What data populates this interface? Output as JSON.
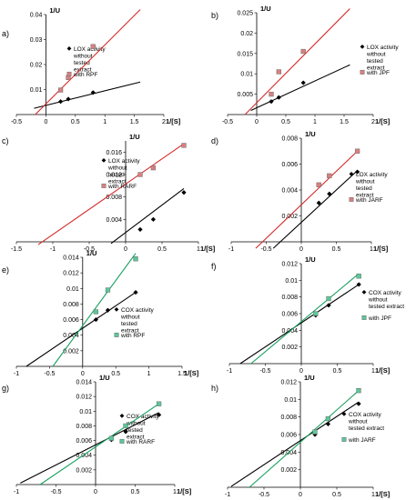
{
  "chart_data": [
    {
      "panel_label": "a)",
      "type": "line",
      "ylabel": "1/U",
      "xlabel": "1/[S]",
      "xlim": [
        -0.5,
        2
      ],
      "ylim": [
        0,
        0.04
      ],
      "xticks": [
        "-0.5",
        "0",
        "0.5",
        "1",
        "1.5",
        "2"
      ],
      "yticks": [
        "0.01",
        "0.02",
        "0.03",
        "0.04"
      ],
      "series": [
        {
          "name": "LOX activity without tested extract",
          "color": "#000000",
          "marker": "diamond",
          "x": [
            0.25,
            0.38,
            0.8
          ],
          "y": [
            0.0052,
            0.0062,
            0.0088
          ],
          "line": [
            [
              -0.2,
              0.0025
            ],
            [
              1.6,
              0.013
            ]
          ]
        },
        {
          "name": "with RPF",
          "color": "#d42a2a",
          "marker": "square",
          "x": [
            0.25,
            0.38,
            0.8
          ],
          "y": [
            0.0098,
            0.0148,
            0.0272
          ],
          "line": [
            [
              -0.18,
              0
            ],
            [
              1.6,
              0.042
            ]
          ]
        }
      ]
    },
    {
      "panel_label": "b)",
      "type": "line",
      "ylabel": "1/U",
      "xlabel": "1/[S]",
      "xlim": [
        -0.5,
        2
      ],
      "ylim": [
        0,
        0.025
      ],
      "xticks": [
        "-0.5",
        "0",
        "0.5",
        "1",
        "1.5",
        "2"
      ],
      "yticks": [
        "0.005",
        "0.01",
        "0.015",
        "0.02",
        "0.025"
      ],
      "series": [
        {
          "name": "LOX activity without tested extract",
          "color": "#000000",
          "marker": "diamond",
          "x": [
            0.25,
            0.38,
            0.8
          ],
          "y": [
            0.0032,
            0.0042,
            0.0078
          ],
          "line": [
            [
              -0.1,
              0.001
            ],
            [
              1.6,
              0.0122
            ]
          ]
        },
        {
          "name": "with JPF",
          "color": "#d42a2a",
          "marker": "square",
          "x": [
            0.25,
            0.38,
            0.8
          ],
          "y": [
            0.005,
            0.0105,
            0.0155
          ],
          "line": [
            [
              -0.2,
              0
            ],
            [
              1.6,
              0.026
            ]
          ]
        }
      ]
    },
    {
      "panel_label": "c)",
      "type": "line",
      "ylabel": "1/U",
      "xlabel": "1/[S]",
      "xlim": [
        -1.5,
        1
      ],
      "ylim": [
        0,
        0.018
      ],
      "xticks": [
        "-1.5",
        "-1",
        "-0.5",
        "0",
        "0.5",
        "1"
      ],
      "yticks": [
        "0.004",
        "0.008",
        "0.012",
        "0.016"
      ],
      "series": [
        {
          "name": "LOX activity without tested extract",
          "color": "#000000",
          "marker": "diamond",
          "x": [
            0.2,
            0.38,
            0.8
          ],
          "y": [
            0.0022,
            0.004,
            0.0088
          ],
          "line": [
            [
              -0.2,
              -0.0003
            ],
            [
              0.8,
              0.0095
            ]
          ]
        },
        {
          "name": "with RARF",
          "color": "#d42a2a",
          "marker": "square",
          "x": [
            0.2,
            0.38,
            0.8
          ],
          "y": [
            0.012,
            0.0132,
            0.0172
          ],
          "line": [
            [
              -1.2,
              -0.0005
            ],
            [
              0.8,
              0.0175
            ]
          ]
        }
      ]
    },
    {
      "panel_label": "d)",
      "type": "line",
      "ylabel": "1/U",
      "xlabel": "1/[S]",
      "xlim": [
        -1,
        1
      ],
      "ylim": [
        0,
        0.008
      ],
      "xticks": [
        "-1",
        "-0.5",
        "0",
        "0.5",
        "1"
      ],
      "yticks": [
        "0.002",
        "0.004",
        "0.006",
        "0.008"
      ],
      "series": [
        {
          "name": "LOX activity without tested extract",
          "color": "#000000",
          "marker": "diamond",
          "x": [
            0.25,
            0.4,
            0.8
          ],
          "y": [
            0.003,
            0.0037,
            0.0054
          ],
          "line": [
            [
              -0.4,
              -0.0005
            ],
            [
              0.8,
              0.0055
            ]
          ]
        },
        {
          "name": "with JARF",
          "color": "#d42a2a",
          "marker": "square",
          "x": [
            0.25,
            0.4,
            0.8
          ],
          "y": [
            0.0044,
            0.0051,
            0.007
          ],
          "line": [
            [
              -0.65,
              -0.0005
            ],
            [
              0.8,
              0.007
            ]
          ]
        }
      ]
    },
    {
      "panel_label": "e)",
      "type": "line",
      "ylabel": "1/U",
      "xlabel": "1/[S]",
      "xlim": [
        -1,
        1.5
      ],
      "ylim": [
        0,
        0.014
      ],
      "xticks": [
        "-1",
        "-0.5",
        "0",
        "0.5",
        "1",
        "1.5"
      ],
      "yticks": [
        "0.002",
        "0.004",
        "0.006",
        "0.008",
        "0.01",
        "0.012",
        "0.014"
      ],
      "series": [
        {
          "name": "COX activity without tested extract",
          "color": "#000000",
          "marker": "diamond",
          "x": [
            0.2,
            0.38,
            0.8
          ],
          "y": [
            0.006,
            0.0072,
            0.0095
          ],
          "line": [
            [
              -0.85,
              0
            ],
            [
              0.8,
              0.0095
            ]
          ]
        },
        {
          "name": "with RPF",
          "color": "#17a060",
          "marker": "square",
          "x": [
            0.2,
            0.38,
            0.8
          ],
          "y": [
            0.007,
            0.0098,
            0.0138
          ],
          "line": [
            [
              -0.45,
              0
            ],
            [
              0.8,
              0.0145
            ]
          ]
        }
      ]
    },
    {
      "panel_label": "f)",
      "type": "line",
      "ylabel": "1/U",
      "xlabel": "1/[S]",
      "xlim": [
        -1,
        1
      ],
      "ylim": [
        0,
        0.012
      ],
      "xticks": [
        "-1",
        "-0.5",
        "0",
        "0.5",
        "1"
      ],
      "yticks": [
        "0.002",
        "0.004",
        "0.006",
        "0.008",
        "0.01",
        "0.012"
      ],
      "series": [
        {
          "name": "COX activity without tested extract",
          "color": "#000000",
          "marker": "diamond",
          "x": [
            0.2,
            0.38,
            0.8
          ],
          "y": [
            0.0058,
            0.007,
            0.0095
          ],
          "line": [
            [
              -0.85,
              0
            ],
            [
              0.8,
              0.0095
            ]
          ]
        },
        {
          "name": "with JPF",
          "color": "#17a060",
          "marker": "square",
          "x": [
            0.2,
            0.38,
            0.8
          ],
          "y": [
            0.006,
            0.0078,
            0.0105
          ],
          "line": [
            [
              -0.7,
              0
            ],
            [
              0.8,
              0.0108
            ]
          ]
        }
      ]
    },
    {
      "panel_label": "g)",
      "type": "line",
      "ylabel": "1/U",
      "xlabel": "1/[S]",
      "xlim": [
        -1,
        1
      ],
      "ylim": [
        0,
        0.014
      ],
      "xticks": [
        "-1",
        "-0.5",
        "0",
        "0.5",
        "1"
      ],
      "yticks": [
        "0.002",
        "0.004",
        "0.006",
        "0.008",
        "0.01",
        "0.012",
        "0.014"
      ],
      "series": [
        {
          "name": "COX activity without tested extract",
          "color": "#000000",
          "marker": "diamond",
          "x": [
            0.2,
            0.38,
            0.8
          ],
          "y": [
            0.0061,
            0.0072,
            0.0095
          ],
          "line": [
            [
              -0.95,
              0.0002
            ],
            [
              0.8,
              0.0098
            ]
          ]
        },
        {
          "name": "with RARF",
          "color": "#17a060",
          "marker": "square",
          "x": [
            0.2,
            0.38,
            0.8
          ],
          "y": [
            0.0063,
            0.008,
            0.011
          ],
          "line": [
            [
              -0.7,
              0
            ],
            [
              0.8,
              0.011
            ]
          ]
        }
      ]
    },
    {
      "panel_label": "h)",
      "type": "line",
      "ylabel": "1/U",
      "xlabel": "1/[S]",
      "xlim": [
        -1,
        1
      ],
      "ylim": [
        0,
        0.012
      ],
      "xticks": [
        "-1",
        "-0.5",
        "0",
        "0.5",
        "1"
      ],
      "yticks": [
        "0.002",
        "0.004",
        "0.006",
        "0.008",
        "0.01",
        "0.012"
      ],
      "series": [
        {
          "name": "COX activity without tested extract",
          "color": "#000000",
          "marker": "diamond",
          "x": [
            0.2,
            0.38,
            0.8
          ],
          "y": [
            0.006,
            0.0072,
            0.0095
          ],
          "line": [
            [
              -0.95,
              0.0001
            ],
            [
              0.8,
              0.0097
            ]
          ]
        },
        {
          "name": "with JARF",
          "color": "#17a060",
          "marker": "square",
          "x": [
            0.2,
            0.38,
            0.8
          ],
          "y": [
            0.0063,
            0.0078,
            0.011
          ],
          "line": [
            [
              -0.7,
              0
            ],
            [
              0.8,
              0.011
            ]
          ]
        }
      ]
    }
  ]
}
